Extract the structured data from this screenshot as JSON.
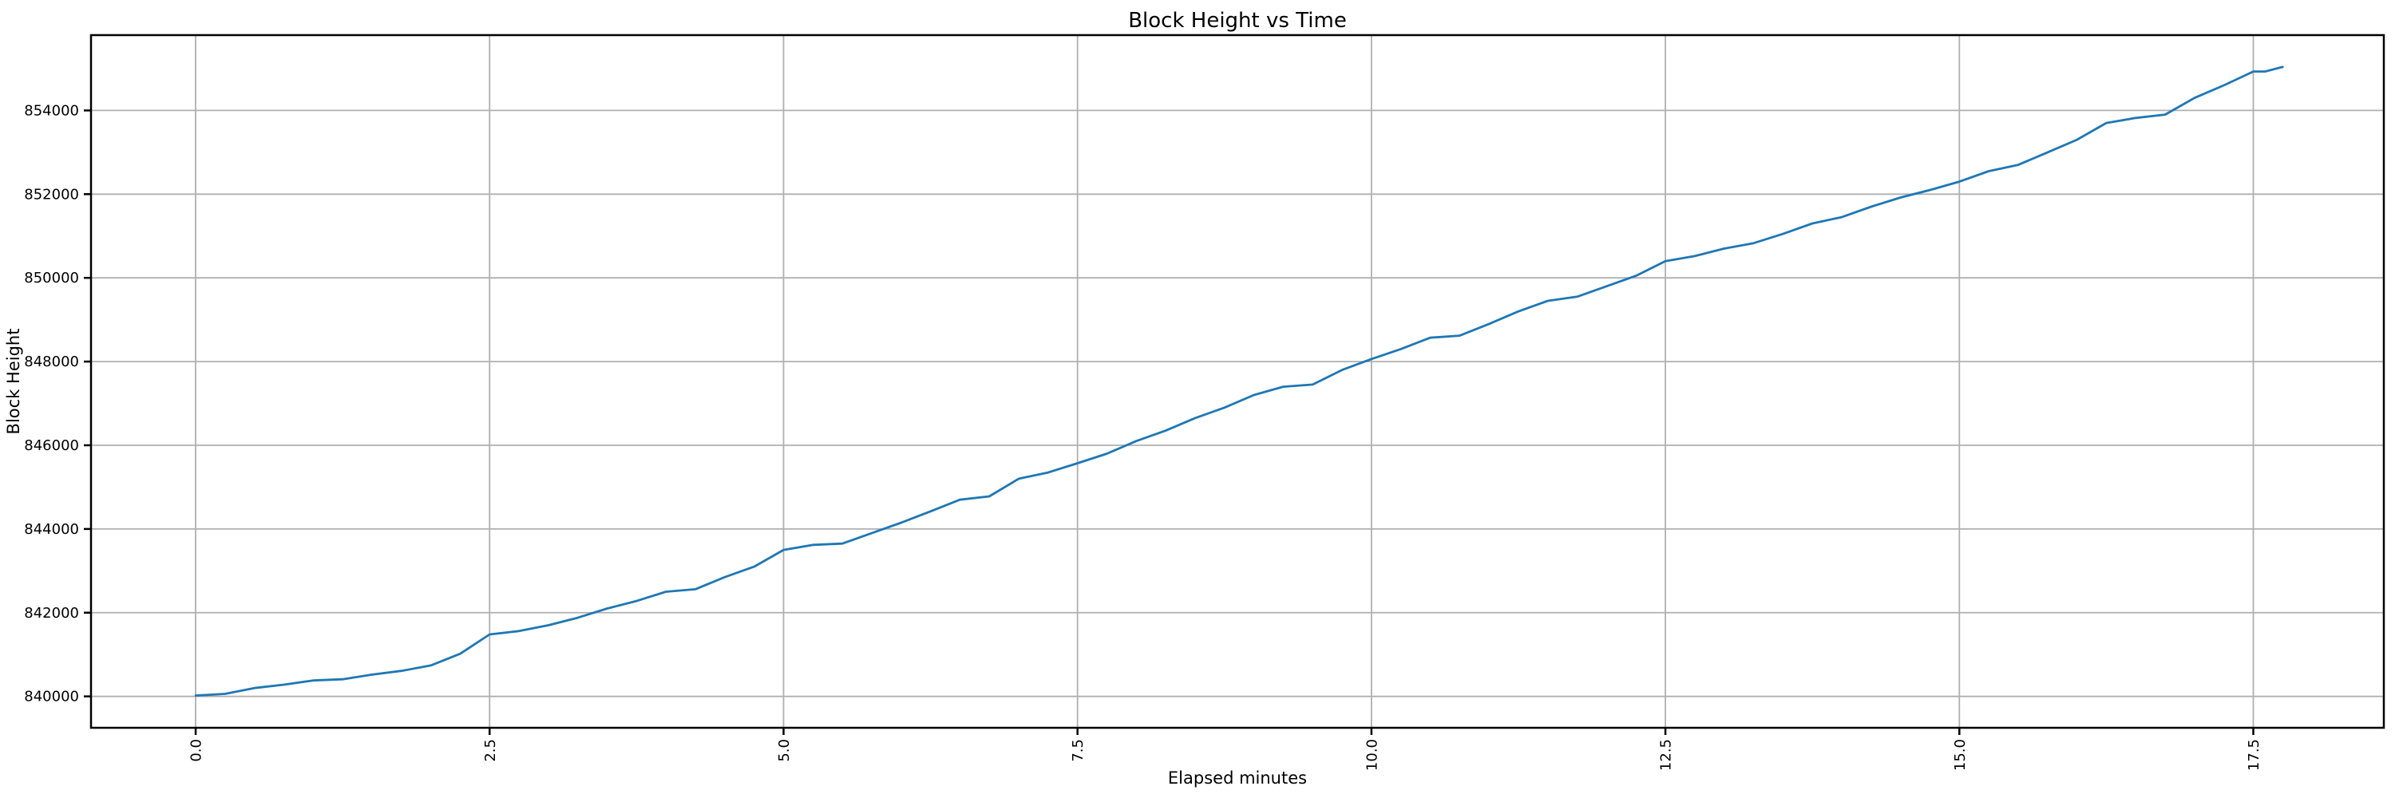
{
  "page": {
    "background": "#ffffff"
  },
  "chart_data": {
    "type": "line",
    "title": "Block Height vs Time",
    "xlabel": "Elapsed minutes",
    "ylabel": "Block Height",
    "grid": true,
    "legend_position": "none",
    "colors": {
      "series": "#1f77b4",
      "grid": "#b0b0b0",
      "axis": "#000000",
      "background": "#ffffff"
    },
    "xlim": [
      -0.89,
      18.61
    ],
    "ylim": [
      839250,
      855800
    ],
    "xticks": [
      0.0,
      2.5,
      5.0,
      7.5,
      10.0,
      12.5,
      15.0,
      17.5
    ],
    "xtick_labels": [
      "0.0",
      "2.5",
      "5.0",
      "7.5",
      "10.0",
      "12.5",
      "15.0",
      "17.5"
    ],
    "xtick_rotation_deg": 90,
    "yticks": [
      840000,
      842000,
      844000,
      846000,
      848000,
      850000,
      852000,
      854000
    ],
    "ytick_labels": [
      "840000",
      "842000",
      "844000",
      "846000",
      "848000",
      "850000",
      "852000",
      "854000"
    ],
    "series": [
      {
        "name": "block-height",
        "color": "#1f77b4",
        "points": [
          [
            0.0,
            840020
          ],
          [
            0.25,
            840060
          ],
          [
            0.5,
            840200
          ],
          [
            0.75,
            840280
          ],
          [
            1.0,
            840380
          ],
          [
            1.25,
            840410
          ],
          [
            1.5,
            840520
          ],
          [
            1.75,
            840610
          ],
          [
            2.0,
            840740
          ],
          [
            2.25,
            841020
          ],
          [
            2.5,
            841480
          ],
          [
            2.75,
            841560
          ],
          [
            3.0,
            841700
          ],
          [
            3.25,
            841880
          ],
          [
            3.5,
            842100
          ],
          [
            3.75,
            842280
          ],
          [
            4.0,
            842500
          ],
          [
            4.25,
            842560
          ],
          [
            4.5,
            842850
          ],
          [
            4.75,
            843100
          ],
          [
            5.0,
            843500
          ],
          [
            5.25,
            843620
          ],
          [
            5.5,
            843650
          ],
          [
            5.75,
            843900
          ],
          [
            6.0,
            844150
          ],
          [
            6.25,
            844420
          ],
          [
            6.5,
            844700
          ],
          [
            6.75,
            844780
          ],
          [
            7.0,
            845200
          ],
          [
            7.25,
            845350
          ],
          [
            7.5,
            845570
          ],
          [
            7.75,
            845800
          ],
          [
            8.0,
            846100
          ],
          [
            8.25,
            846350
          ],
          [
            8.5,
            846650
          ],
          [
            8.75,
            846900
          ],
          [
            9.0,
            847200
          ],
          [
            9.25,
            847400
          ],
          [
            9.5,
            847450
          ],
          [
            9.75,
            847800
          ],
          [
            10.0,
            848060
          ],
          [
            10.25,
            848300
          ],
          [
            10.5,
            848570
          ],
          [
            10.75,
            848620
          ],
          [
            11.0,
            848900
          ],
          [
            11.25,
            849200
          ],
          [
            11.5,
            849450
          ],
          [
            11.75,
            849550
          ],
          [
            12.0,
            849800
          ],
          [
            12.25,
            850050
          ],
          [
            12.5,
            850400
          ],
          [
            12.75,
            850520
          ],
          [
            13.0,
            850700
          ],
          [
            13.25,
            850830
          ],
          [
            13.5,
            851050
          ],
          [
            13.75,
            851300
          ],
          [
            14.0,
            851450
          ],
          [
            14.25,
            851700
          ],
          [
            14.5,
            851920
          ],
          [
            14.75,
            852100
          ],
          [
            15.0,
            852300
          ],
          [
            15.25,
            852550
          ],
          [
            15.5,
            852700
          ],
          [
            15.75,
            853000
          ],
          [
            16.0,
            853300
          ],
          [
            16.25,
            853700
          ],
          [
            16.5,
            853820
          ],
          [
            16.75,
            853900
          ],
          [
            17.0,
            854300
          ],
          [
            17.25,
            854600
          ],
          [
            17.5,
            854930
          ],
          [
            17.6,
            854930
          ],
          [
            17.75,
            855040
          ]
        ]
      }
    ]
  }
}
